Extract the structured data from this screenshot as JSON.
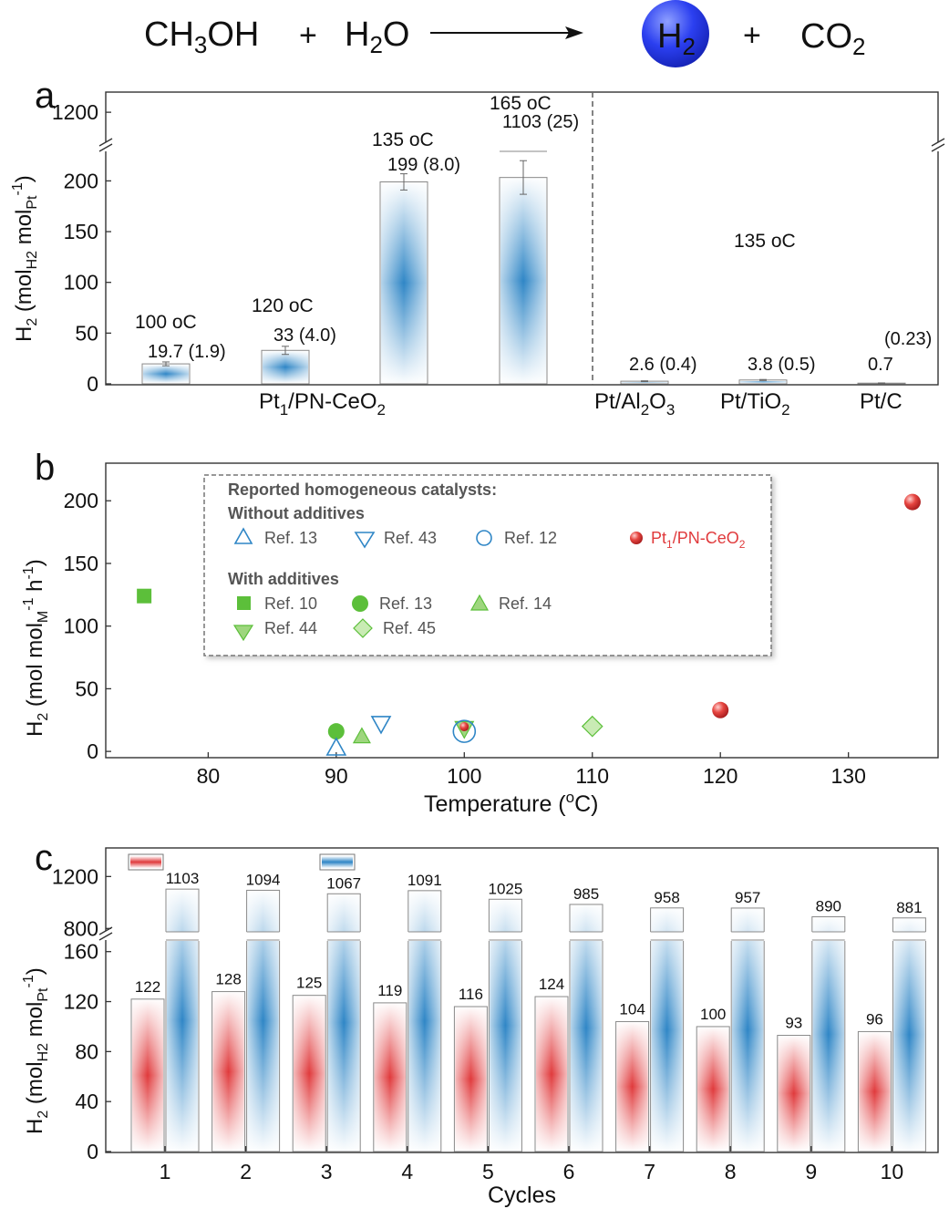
{
  "reaction": {
    "reactant1": "CH3OH",
    "plus1": "+",
    "reactant2": "H2O",
    "product1": "H2",
    "plus2": "+",
    "product2": "CO2",
    "bubble_color": "#2b3ff0"
  },
  "colors": {
    "blue": "#2f86c6",
    "red": "#e03a3c",
    "green": "#5cbf3a",
    "green_light": "#9ed67e",
    "red_marker": "#d9302c"
  },
  "chart_data": [
    {
      "panel": "a",
      "type": "bar",
      "ylabel_main": "H2 (molH2 molPt-1)",
      "ylim_lower": [
        0,
        230
      ],
      "ylim_upper": [
        1150,
        1230
      ],
      "yticks": [
        0,
        50,
        100,
        150,
        200,
        1200
      ],
      "bars": [
        {
          "category": "Pt1/PN-CeO2",
          "temp": "100 oC",
          "value": 19.7,
          "err": 1.9,
          "label_value": "19.7",
          "label_err": "(1.9)"
        },
        {
          "category": "Pt1/PN-CeO2",
          "temp": "120 oC",
          "value": 33,
          "err": 4.0,
          "label_value": "33",
          "label_err": "(4.0)"
        },
        {
          "category": "Pt1/PN-CeO2",
          "temp": "135 oC",
          "value": 199,
          "err": 8.0,
          "label_value": "199",
          "label_err": "(8.0)"
        },
        {
          "category": "Pt1/PN-CeO2",
          "temp": "165 oC",
          "value": 1103,
          "err": 25,
          "label_value": "1103",
          "label_err": "(25)"
        },
        {
          "category": "Pt/Al2O3",
          "temp": "135 oC",
          "value": 2.6,
          "err": 0.4,
          "label_value": "2.6",
          "label_err": "(0.4)"
        },
        {
          "category": "Pt/TiO2",
          "temp": "135 oC",
          "value": 3.8,
          "err": 0.5,
          "label_value": "3.8",
          "label_err": "(0.5)"
        },
        {
          "category": "Pt/C",
          "temp": "135 oC",
          "value": 0.7,
          "err": 0.23,
          "label_value": "0.7",
          "label_err": "(0.23)"
        }
      ],
      "temp_labels": [
        "100 oC",
        "120 oC",
        "135 oC",
        "165 oC",
        "135 oC"
      ],
      "category_labels": [
        "Pt1/PN-CeO2",
        "Pt/Al2O3",
        "Pt/TiO2",
        "Pt/C"
      ]
    },
    {
      "panel": "b",
      "type": "scatter",
      "xlabel": "Temperature (oC)",
      "ylabel": "H2 (mol molM-1 h-1)",
      "xlim": [
        72,
        137
      ],
      "ylim": [
        -5,
        230
      ],
      "xticks": [
        80,
        90,
        100,
        110,
        120,
        130
      ],
      "yticks": [
        0,
        50,
        100,
        150,
        200
      ],
      "legend_title": "Reported homogeneous catalysts:",
      "legend_group1": "Without additives",
      "legend_group2": "With additives",
      "series": [
        {
          "name": "Ref. 13",
          "marker": "triangle-up-open",
          "color": "#2f86c6",
          "points": [
            [
              90,
              3
            ]
          ]
        },
        {
          "name": "Ref. 43",
          "marker": "triangle-down-open",
          "color": "#2f86c6",
          "points": [
            [
              93.5,
              22
            ]
          ]
        },
        {
          "name": "Ref. 12",
          "marker": "circle-open",
          "color": "#2f86c6",
          "points": [
            [
              100,
              16
            ]
          ]
        },
        {
          "name": "Pt1/PN-CeO2",
          "marker": "sphere",
          "color": "#d9302c",
          "points": [
            [
              100,
              19.7
            ],
            [
              120,
              33
            ],
            [
              135,
              199
            ]
          ]
        },
        {
          "name": "Ref. 10",
          "marker": "square",
          "color": "#5cbf3a",
          "points": [
            [
              75,
              124
            ]
          ]
        },
        {
          "name": "Ref. 13",
          "marker": "circle",
          "color": "#5cbf3a",
          "points": [
            [
              90,
              16
            ]
          ]
        },
        {
          "name": "Ref. 14",
          "marker": "triangle-up",
          "color": "#9ed67e",
          "points": [
            [
              92,
              12
            ]
          ]
        },
        {
          "name": "Ref. 44",
          "marker": "triangle-down",
          "color": "#9ed67e",
          "points": [
            [
              100,
              18
            ]
          ]
        },
        {
          "name": "Ref. 45",
          "marker": "diamond",
          "color": "#9ed67e",
          "points": [
            [
              110,
              20
            ]
          ]
        }
      ]
    },
    {
      "panel": "c",
      "type": "bar",
      "xlabel": "Cycles",
      "ylabel_main": "H2 (molH2 molPt-1)",
      "ylim_lower": [
        0,
        170
      ],
      "ylim_upper": [
        760,
        1420
      ],
      "yticks_lower": [
        0,
        40,
        80,
        120,
        160
      ],
      "yticks_upper": [
        800,
        1200
      ],
      "categories": [
        "1",
        "2",
        "3",
        "4",
        "5",
        "6",
        "7",
        "8",
        "9",
        "10"
      ],
      "series": [
        {
          "name": "red",
          "color": "#e03a3c",
          "values": [
            122,
            128,
            125,
            119,
            116,
            124,
            104,
            100,
            93,
            96
          ]
        },
        {
          "name": "blue",
          "color": "#2f86c6",
          "values": [
            1103,
            1094,
            1067,
            1091,
            1025,
            985,
            958,
            957,
            890,
            881
          ]
        }
      ]
    }
  ]
}
